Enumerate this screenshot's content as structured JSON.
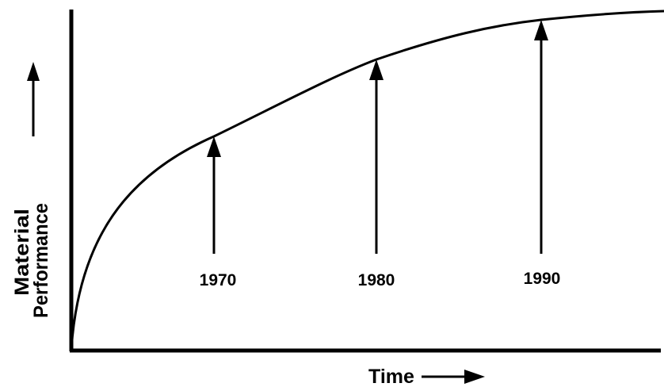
{
  "axes": {
    "y_label": [
      "Material",
      "Performance"
    ],
    "x_label": "Time"
  },
  "markers": [
    {
      "label": "1970"
    },
    {
      "label": "1980"
    },
    {
      "label": "1990"
    }
  ]
}
